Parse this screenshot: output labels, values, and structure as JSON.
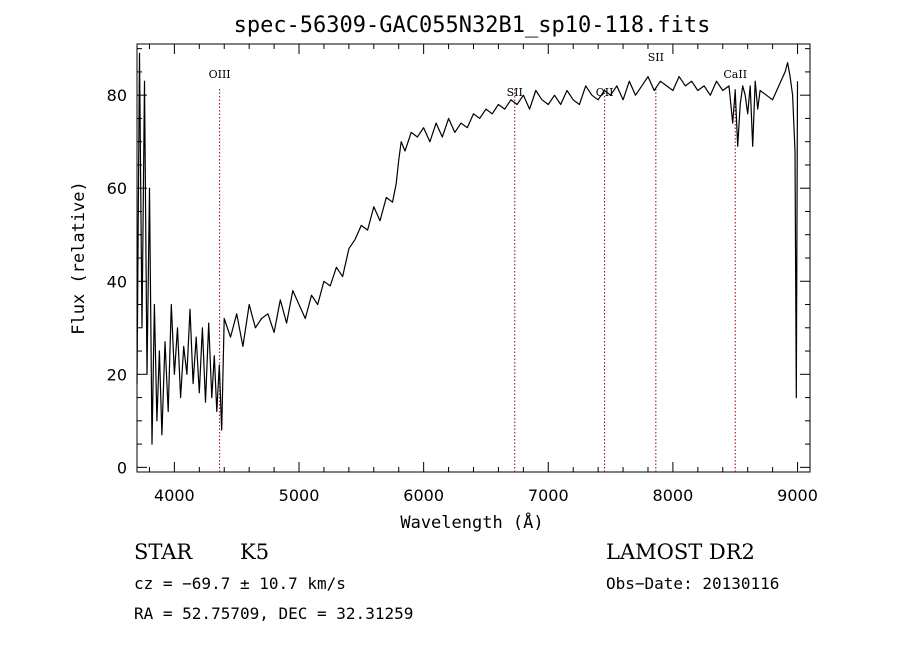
{
  "chart_data": {
    "type": "line",
    "title": "spec-56309-GAC055N32B1_sp10-118.fits",
    "xlabel": "Wavelength (Å)",
    "ylabel": "Flux (relative)",
    "xlim": [
      3700,
      9100
    ],
    "ylim": [
      -1,
      91
    ],
    "x_ticks": [
      4000,
      5000,
      6000,
      7000,
      8000,
      9000
    ],
    "y_ticks": [
      0,
      20,
      40,
      60,
      80
    ],
    "grid": false,
    "line_color": "#000000",
    "marker_color": "#990000",
    "series": [
      {
        "x": [
          3700,
          3720,
          3740,
          3760,
          3780,
          3800,
          3820,
          3840,
          3860,
          3880,
          3900,
          3925,
          3950,
          3975,
          4000,
          4025,
          4050,
          4075,
          4100,
          4125,
          4150,
          4175,
          4200,
          4225,
          4250,
          4275,
          4300,
          4320,
          4340,
          4360,
          4380,
          4400,
          4450,
          4500,
          4550,
          4600,
          4650,
          4700,
          4750,
          4800,
          4850,
          4900,
          4950,
          5000,
          5050,
          5100,
          5150,
          5200,
          5250,
          5300,
          5350,
          5400,
          5450,
          5500,
          5550,
          5600,
          5650,
          5700,
          5750,
          5780,
          5800,
          5820,
          5850,
          5900,
          5950,
          6000,
          6050,
          6100,
          6150,
          6200,
          6250,
          6300,
          6350,
          6400,
          6450,
          6500,
          6550,
          6600,
          6650,
          6700,
          6750,
          6800,
          6850,
          6900,
          6950,
          7000,
          7050,
          7100,
          7150,
          7200,
          7250,
          7300,
          7350,
          7400,
          7450,
          7500,
          7550,
          7600,
          7650,
          7700,
          7750,
          7800,
          7850,
          7900,
          7950,
          8000,
          8050,
          8100,
          8150,
          8200,
          8250,
          8300,
          8350,
          8400,
          8450,
          8480,
          8500,
          8520,
          8540,
          8560,
          8580,
          8600,
          8620,
          8640,
          8660,
          8680,
          8700,
          8750,
          8800,
          8850,
          8900,
          8920,
          8940,
          8960,
          8980,
          8990,
          9000
        ],
        "y": [
          18,
          89,
          30,
          83,
          20,
          60,
          5,
          35,
          10,
          25,
          7,
          27,
          12,
          35,
          20,
          30,
          15,
          26,
          20,
          34,
          18,
          28,
          16,
          30,
          14,
          31,
          15,
          24,
          12,
          22,
          8,
          32,
          28,
          33,
          26,
          35,
          30,
          32,
          33,
          29,
          36,
          31,
          38,
          35,
          32,
          37,
          35,
          40,
          39,
          43,
          41,
          47,
          49,
          52,
          51,
          56,
          53,
          58,
          57,
          61,
          66,
          70,
          68,
          72,
          71,
          73,
          70,
          74,
          71,
          75,
          72,
          74,
          73,
          76,
          75,
          77,
          76,
          78,
          77,
          79,
          78,
          80,
          77,
          81,
          79,
          78,
          80,
          78,
          81,
          79,
          78,
          82,
          80,
          79,
          81,
          80,
          82,
          79,
          83,
          80,
          82,
          84,
          81,
          83,
          82,
          81,
          84,
          82,
          83,
          81,
          82,
          80,
          83,
          81,
          82,
          74,
          81,
          69,
          78,
          82,
          80,
          76,
          82,
          69,
          83,
          77,
          81,
          80,
          79,
          82,
          85,
          87,
          84,
          80,
          68,
          15,
          83
        ]
      }
    ],
    "line_markers": [
      {
        "label": "OIII",
        "x": 4363
      },
      {
        "label": "SII",
        "x": 6731
      },
      {
        "label": "OII",
        "x": 7452
      },
      {
        "label": "SII",
        "x": 7863
      },
      {
        "label": "CaII",
        "x": 8500
      }
    ]
  },
  "info": {
    "class_label": "STAR",
    "subclass_label": "K5",
    "survey_label": "LAMOST DR2",
    "redshift_text": "cz = −69.7 ± 10.7 km/s",
    "obs_date_text": "Obs−Date: 20130116",
    "coords_text": "RA =  52.75709, DEC =  32.31259"
  }
}
